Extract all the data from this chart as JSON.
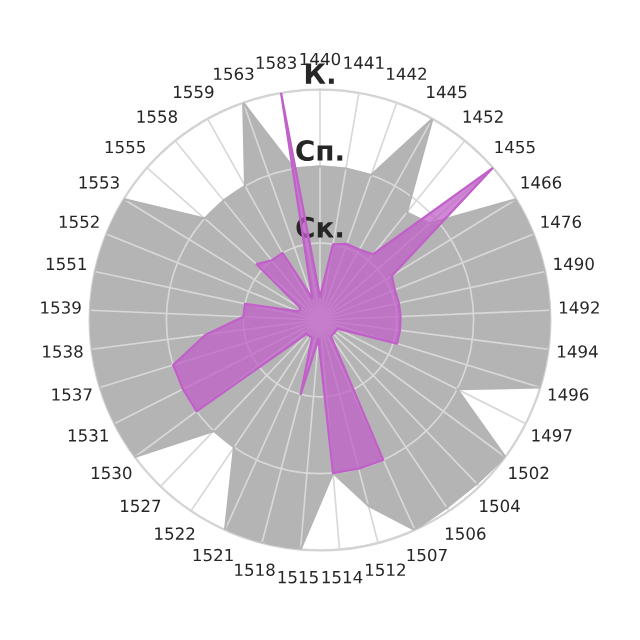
{
  "chart_data": {
    "type": "radar",
    "categories": [
      "1440",
      "1441",
      "1442",
      "1445",
      "1452",
      "1455",
      "1466",
      "1476",
      "1490",
      "1492",
      "1494",
      "1496",
      "1497",
      "1502",
      "1504",
      "1506",
      "1507",
      "1512",
      "1514",
      "1515",
      "1518",
      "1521",
      "1522",
      "1527",
      "1530",
      "1531",
      "1537",
      "1538",
      "1539",
      "1551",
      "1552",
      "1553",
      "1555",
      "1558",
      "1559",
      "1563",
      "1583"
    ],
    "series": [
      {
        "color": "#b4b4b4",
        "values": [
          2,
          2,
          2,
          3,
          1.8,
          1.9,
          3,
          3,
          3,
          3,
          3,
          3,
          2,
          3,
          2.95,
          2.95,
          3,
          2.5,
          2,
          3,
          3,
          3,
          2,
          2,
          3,
          3,
          3,
          3,
          3,
          3,
          3,
          3,
          2,
          2,
          2,
          3,
          2
        ]
      },
      {
        "color": "#c060c8",
        "values": [
          0.3,
          1.0,
          1.05,
          1.05,
          1.1,
          3,
          1.1,
          1.05,
          1.05,
          1.05,
          1.05,
          1.05,
          0.25,
          0.25,
          0.25,
          0.25,
          2,
          2,
          2,
          0.25,
          1,
          0.25,
          0.25,
          0.25,
          2,
          2,
          2,
          1.5,
          1.0,
          1.0,
          0.3,
          0.3,
          1.1,
          1.0,
          1.0,
          0.3,
          3
        ]
      }
    ],
    "ylim": [
      0,
      3
    ],
    "yticks": [
      {
        "value": 1,
        "label": "Ск."
      },
      {
        "value": 2,
        "label": "Сп."
      },
      {
        "value": 3,
        "label": "К."
      }
    ],
    "grid": true,
    "legend": false
  }
}
